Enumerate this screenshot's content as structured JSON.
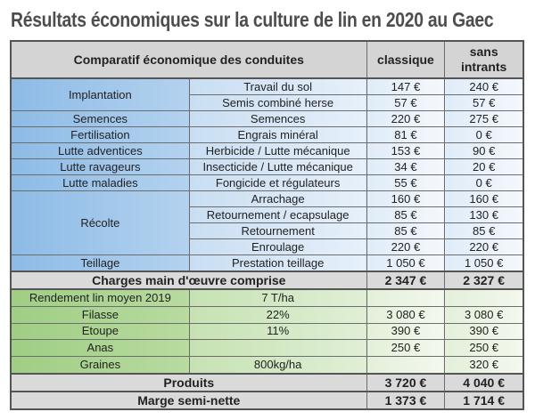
{
  "title": "Résultats économiques sur la culture de lin en 2020 au Gaec",
  "header": {
    "label": "Comparatif économique des conduites",
    "col_classique": "classique",
    "col_sans_1": "sans",
    "col_sans_2": "intrants"
  },
  "charges": [
    {
      "group": "Implantation",
      "item": "Travail du sol",
      "classique": "147 €",
      "sans": "240 €"
    },
    {
      "item": "Semis combiné herse",
      "classique": "57 €",
      "sans": "57 €"
    },
    {
      "group": "Semences",
      "item": "Semences",
      "classique": "220 €",
      "sans": "275 €"
    },
    {
      "group": "Fertilisation",
      "item": "Engrais minéral",
      "classique": "81 €",
      "sans": "0 €"
    },
    {
      "group": "Lutte adventices",
      "item": "Herbicide / Lutte mécanique",
      "classique": "153 €",
      "sans": "90 €"
    },
    {
      "group": "Lutte ravageurs",
      "item": "Insecticide / Lutte mécanique",
      "classique": "34 €",
      "sans": "20 €"
    },
    {
      "group": "Lutte maladies",
      "item": "Fongicide et régulateurs",
      "classique": "55 €",
      "sans": "0 €"
    },
    {
      "group": "Récolte",
      "item": "Arrachage",
      "classique": "160 €",
      "sans": "160 €"
    },
    {
      "item": "Retournement / ecapsulage",
      "classique": "85 €",
      "sans": "130 €"
    },
    {
      "item": "Retournement",
      "classique": "85 €",
      "sans": "85 €"
    },
    {
      "item": "Enroulage",
      "classique": "220 €",
      "sans": "220 €"
    },
    {
      "group": "Teillage",
      "item": "Prestation teillage",
      "classique": "1 050 €",
      "sans": "1 050 €"
    }
  ],
  "charges_total": {
    "label": "Charges main d'œuvre comprise",
    "classique": "2 347 €",
    "sans": "2 327 €"
  },
  "produits": [
    {
      "label": "Rendement lin moyen 2019",
      "detail": "7 T/ha",
      "classique": "",
      "sans": ""
    },
    {
      "label": "Filasse",
      "detail": "22%",
      "classique": "3 080 €",
      "sans": "3 080 €"
    },
    {
      "label": "Etoupe",
      "detail": "11%",
      "classique": "390 €",
      "sans": "390 €"
    },
    {
      "label": "Anas",
      "detail": "",
      "classique": "250 €",
      "sans": "250 €"
    },
    {
      "label": "Graines",
      "detail": "800kg/ha",
      "classique": "",
      "sans": "320 €"
    }
  ],
  "produits_total": {
    "label": "Produits",
    "classique": "3 720 €",
    "sans": "4 040 €"
  },
  "marge": {
    "label": "Marge semi-nette",
    "classique": "1 373 €",
    "sans": "1 714 €"
  }
}
